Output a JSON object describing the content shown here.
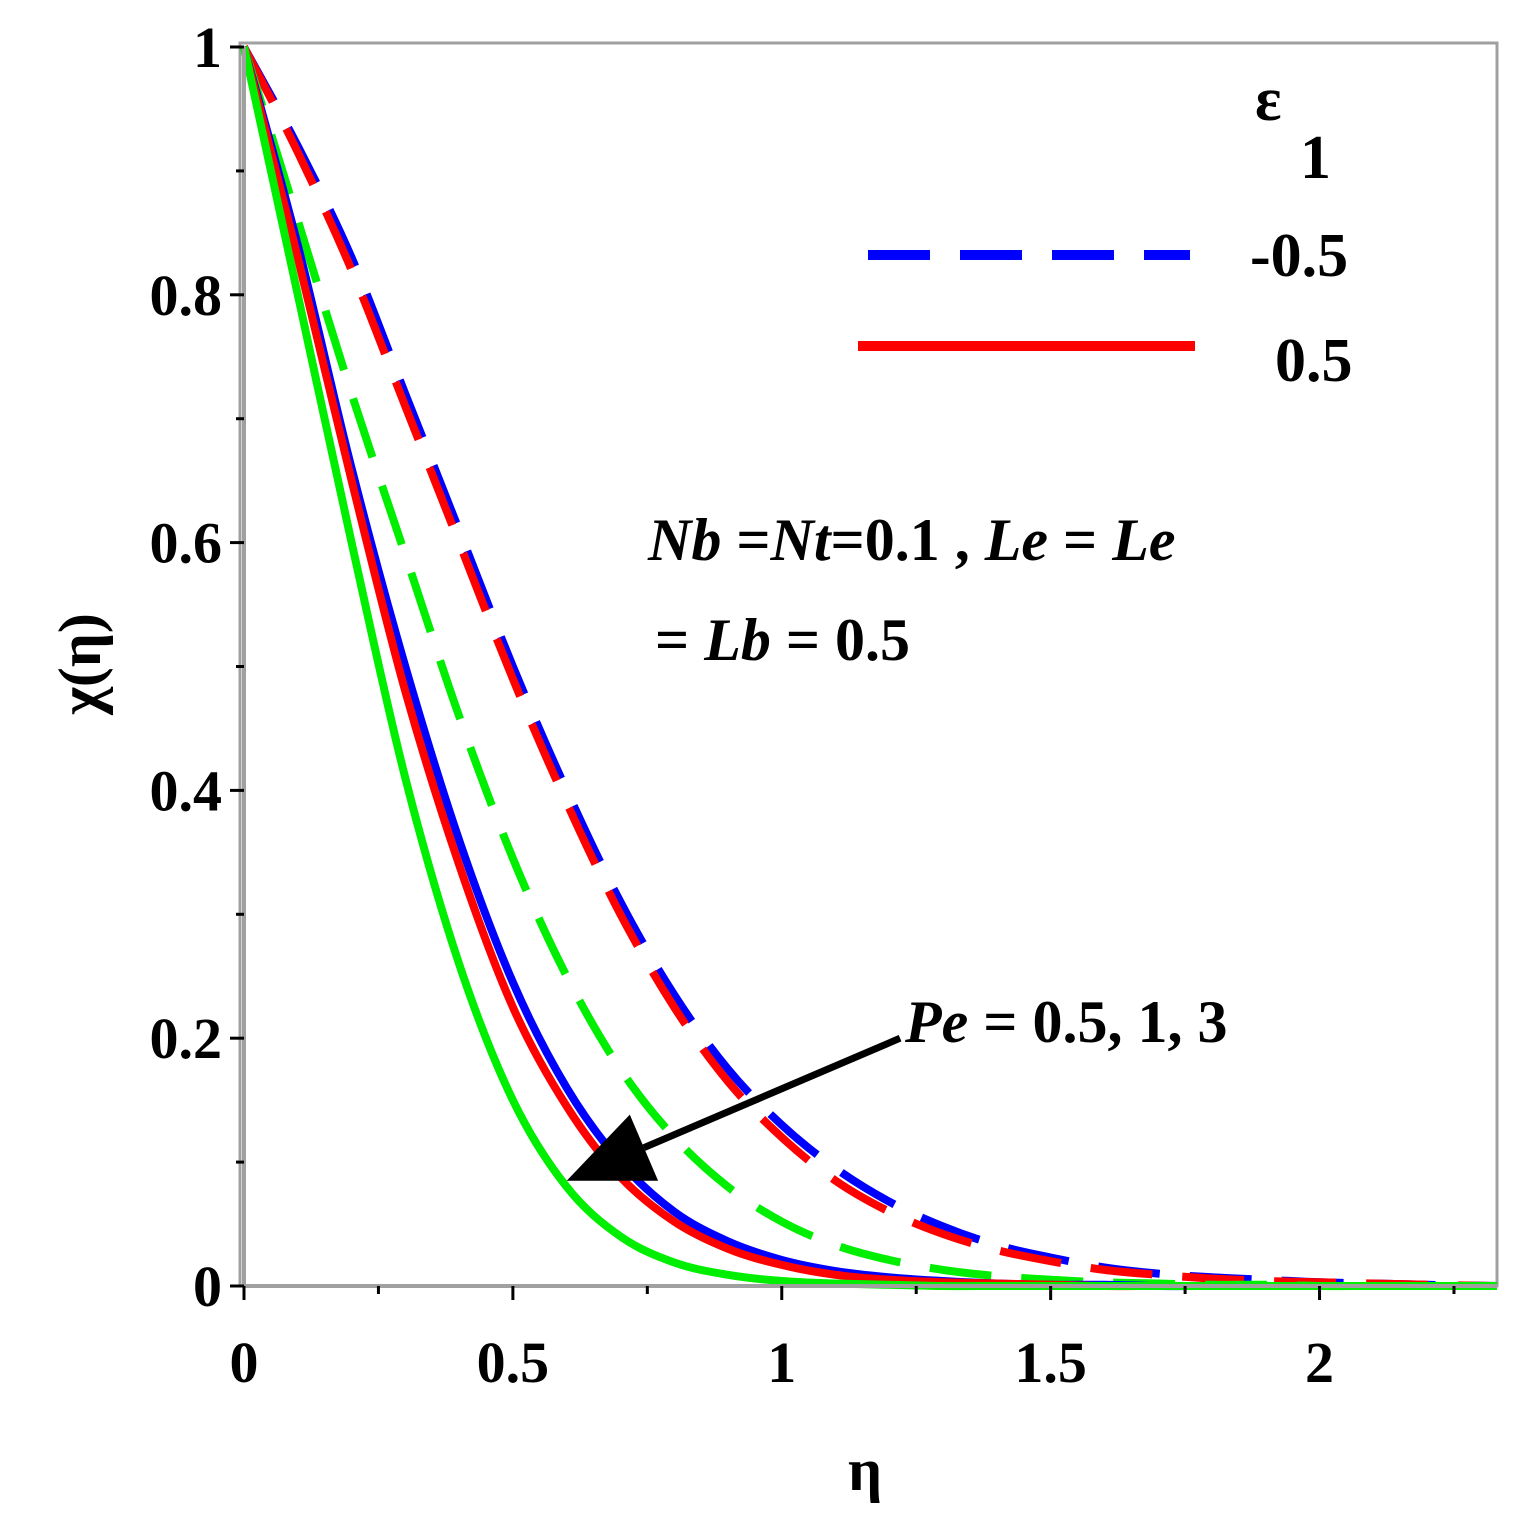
{
  "chart_data": {
    "type": "line",
    "xlabel": "η",
    "ylabel": "χ(η)",
    "xlim": [
      0,
      2.33
    ],
    "ylim": [
      0,
      1
    ],
    "xticks": [
      "0",
      "0.5",
      "1",
      "1.5",
      "2"
    ],
    "xtick_values": [
      0,
      0.5,
      1,
      1.5,
      2
    ],
    "yticks": [
      "0",
      "0.2",
      "0.4",
      "0.6",
      "0.8",
      "1"
    ],
    "ytick_values": [
      0,
      0.2,
      0.4,
      0.6,
      0.8,
      1
    ],
    "grid": false,
    "legend_position": "top-right",
    "legend": {
      "title_main": "ε",
      "title_sub": "1",
      "entries": [
        {
          "label": "-0.5",
          "style": "dashed",
          "color": "#0000ff"
        },
        {
          "label": "0.5",
          "style": "solid",
          "color": "#ff0000"
        }
      ]
    },
    "annotation": {
      "line1": {
        "nb": "Nb",
        "eq1": " =",
        "nt": "Nt",
        "eq2": "=0.1 , ",
        "le1": "Le",
        "eq3": " = ",
        "le2": "Le"
      },
      "line2": {
        "eq": "= ",
        "lb": "Lb",
        "val": " = 0.5"
      },
      "pe": {
        "it": "Pe",
        "rest": " = 0.5, 1, 3"
      }
    },
    "arrow": {
      "from": [
        1.22,
        0.2
      ],
      "to": [
        0.6,
        0.085
      ]
    },
    "x": [
      0,
      0.1,
      0.2,
      0.3,
      0.4,
      0.5,
      0.6,
      0.7,
      0.8,
      0.9,
      1.0,
      1.1,
      1.2,
      1.3,
      1.4,
      1.5,
      1.6,
      1.7,
      1.8,
      1.9,
      2.0,
      2.1,
      2.2,
      2.33
    ],
    "series": [
      {
        "color": "#0000ff",
        "style": "dashed",
        "values": [
          1,
          0.92,
          0.83,
          0.72,
          0.61,
          0.5,
          0.4,
          0.31,
          0.235,
          0.175,
          0.13,
          0.095,
          0.068,
          0.048,
          0.033,
          0.023,
          0.015,
          0.01,
          0.007,
          0.005,
          0.003,
          0.002,
          0.001,
          0
        ]
      },
      {
        "color": "#ff0000",
        "style": "dashed",
        "values": [
          1,
          0.915,
          0.82,
          0.71,
          0.6,
          0.49,
          0.39,
          0.3,
          0.225,
          0.165,
          0.12,
          0.085,
          0.06,
          0.042,
          0.029,
          0.02,
          0.013,
          0.009,
          0.006,
          0.004,
          0.003,
          0.002,
          0.001,
          0
        ]
      },
      {
        "color": "#00ee00",
        "style": "dashed",
        "values": [
          1,
          0.86,
          0.72,
          0.59,
          0.46,
          0.345,
          0.25,
          0.175,
          0.12,
          0.08,
          0.052,
          0.033,
          0.021,
          0.013,
          0.008,
          0.005,
          0.003,
          0.002,
          0.001,
          0.001,
          0,
          0,
          0,
          0
        ]
      },
      {
        "color": "#0000ff",
        "style": "solid",
        "values": [
          1,
          0.84,
          0.66,
          0.5,
          0.36,
          0.245,
          0.16,
          0.1,
          0.06,
          0.036,
          0.021,
          0.012,
          0.007,
          0.004,
          0.002,
          0.001,
          0.001,
          0,
          0,
          0,
          0,
          0,
          0,
          0
        ]
      },
      {
        "color": "#ff0000",
        "style": "solid",
        "values": [
          1,
          0.83,
          0.65,
          0.48,
          0.34,
          0.225,
          0.145,
          0.088,
          0.052,
          0.03,
          0.017,
          0.009,
          0.005,
          0.003,
          0.002,
          0.001,
          0,
          0,
          0,
          0,
          0,
          0,
          0,
          0
        ]
      },
      {
        "color": "#00ee00",
        "style": "solid",
        "values": [
          1,
          0.8,
          0.6,
          0.41,
          0.26,
          0.15,
          0.08,
          0.04,
          0.019,
          0.009,
          0.004,
          0.002,
          0.001,
          0,
          0,
          0,
          0,
          0,
          0,
          0,
          0,
          0,
          0,
          0
        ]
      }
    ]
  }
}
